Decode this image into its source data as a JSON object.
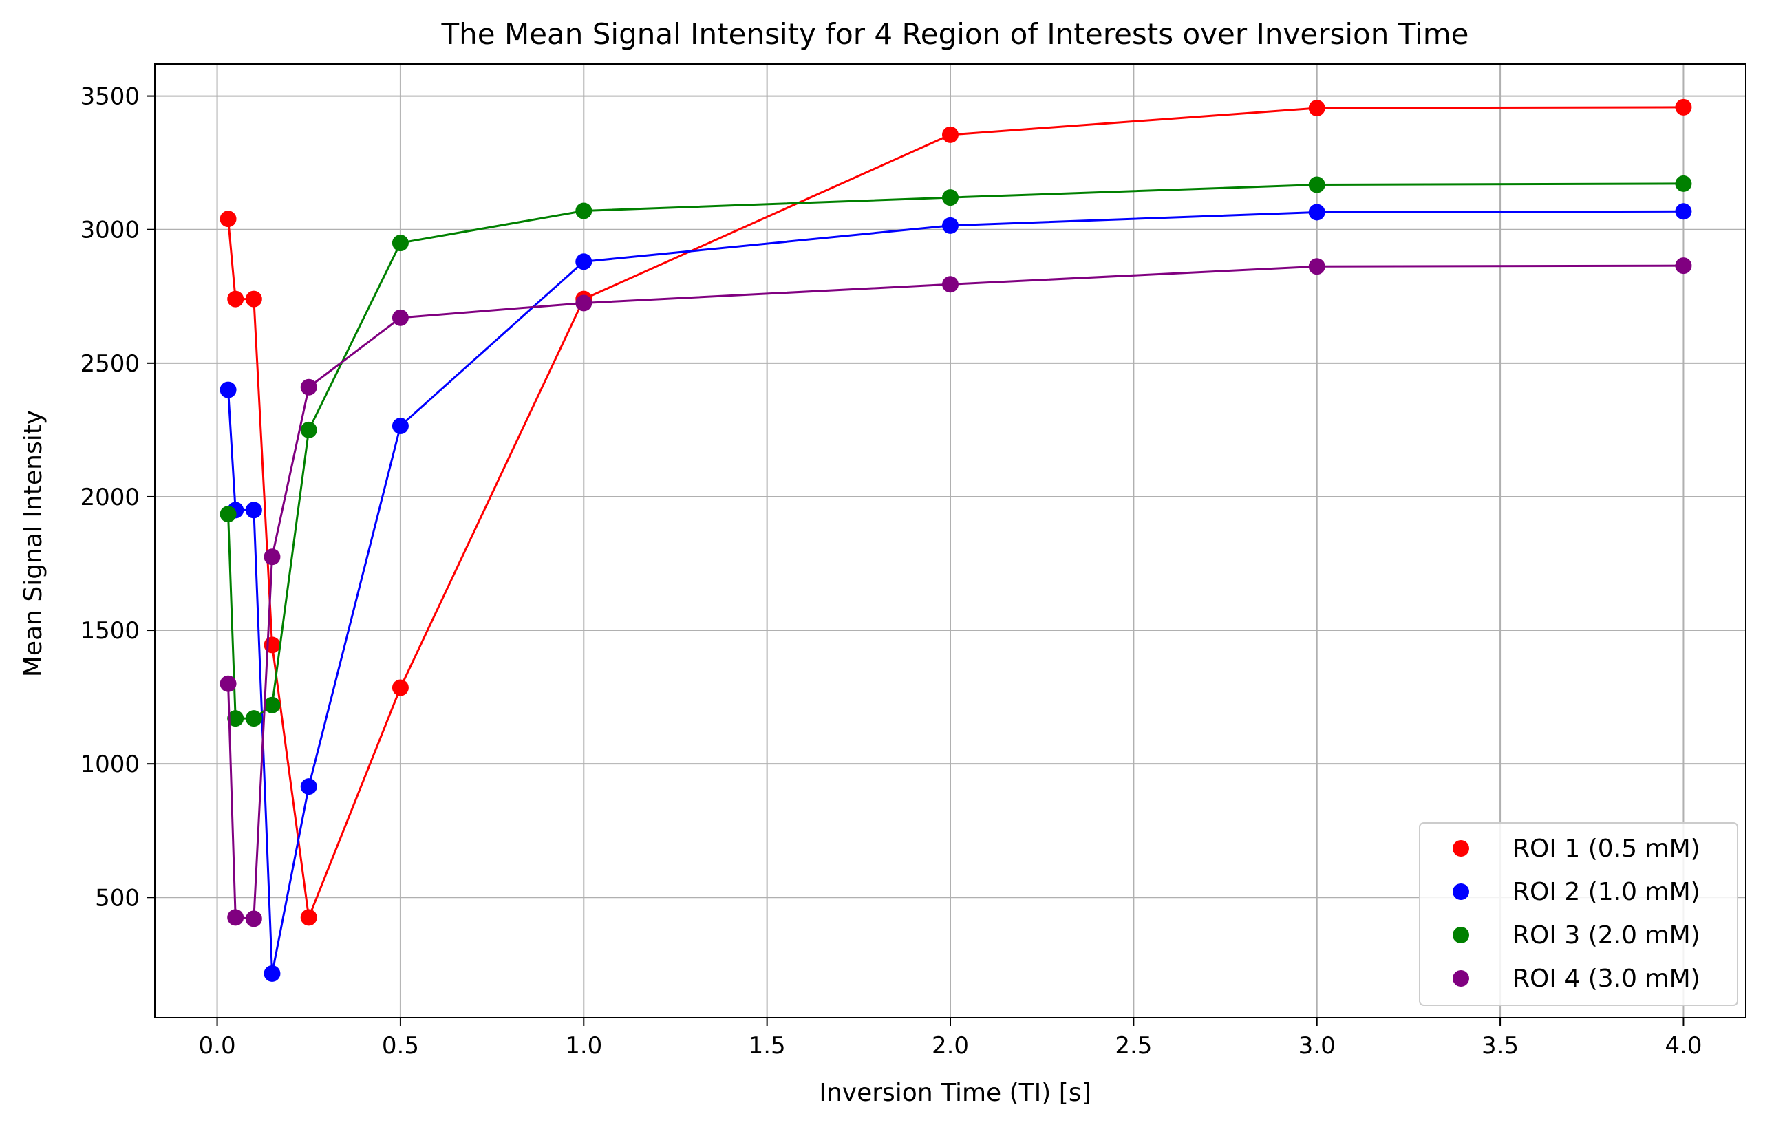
{
  "chart_data": {
    "type": "line",
    "title": "The Mean Signal Intensity for 4 Region of Interests over Inversion Time",
    "xlabel": "Inversion Time (TI) [s]",
    "ylabel": "Mean Signal Intensity",
    "xlim": [
      -0.17,
      4.17
    ],
    "ylim": [
      50,
      3620
    ],
    "xticks": [
      0.0,
      0.5,
      1.0,
      1.5,
      2.0,
      2.5,
      3.0,
      3.5,
      4.0
    ],
    "xtick_labels": [
      "0.0",
      "0.5",
      "1.0",
      "1.5",
      "2.0",
      "2.5",
      "3.0",
      "3.5",
      "4.0"
    ],
    "yticks": [
      500,
      1000,
      1500,
      2000,
      2500,
      3000,
      3500
    ],
    "ytick_labels": [
      "500",
      "1000",
      "1500",
      "2000",
      "2500",
      "3000",
      "3500"
    ],
    "grid": true,
    "legend_position": "lower right",
    "x": [
      0.03,
      0.05,
      0.1,
      0.15,
      0.25,
      0.5,
      1.0,
      2.0,
      3.0,
      4.0
    ],
    "series": [
      {
        "name": "ROI 1 (0.5 mM)",
        "color": "#ff0000",
        "values": [
          3040,
          2740,
          2740,
          1445,
          425,
          1285,
          2740,
          3355,
          3455,
          3458
        ]
      },
      {
        "name": "ROI 2 (1.0 mM)",
        "color": "#0000ff",
        "values": [
          2400,
          1950,
          1950,
          215,
          915,
          2265,
          2880,
          3015,
          3065,
          3068
        ]
      },
      {
        "name": "ROI 3 (2.0 mM)",
        "color": "#008000",
        "values": [
          1935,
          1170,
          1170,
          1220,
          2250,
          2950,
          3070,
          3120,
          3168,
          3172
        ]
      },
      {
        "name": "ROI 4 (3.0 mM)",
        "color": "#800080",
        "values": [
          1300,
          425,
          420,
          1775,
          2410,
          2670,
          2725,
          2795,
          2862,
          2865
        ]
      }
    ]
  }
}
